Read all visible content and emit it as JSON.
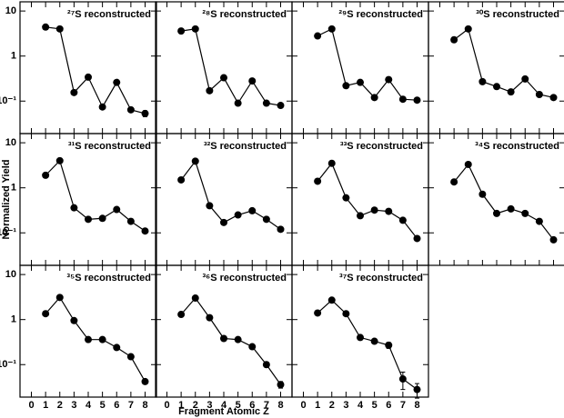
{
  "chart_data": [
    {
      "type": "line",
      "title": "²⁷S reconstructed",
      "x": [
        1,
        2,
        3,
        4,
        5,
        6,
        7,
        8
      ],
      "values": [
        4.4,
        4.0,
        0.155,
        0.34,
        0.074,
        0.26,
        0.064,
        0.053
      ],
      "errors": [
        null,
        null,
        null,
        null,
        null,
        null,
        null,
        0.008
      ],
      "color": "#000000",
      "log_y": true,
      "xlim": [
        -0.8,
        8.8
      ],
      "ylim": [
        0.019,
        16
      ],
      "yticks": [
        {
          "value": 0.1,
          "label": "10⁻¹"
        },
        1,
        10
      ]
    },
    {
      "type": "line",
      "title": "²⁸S reconstructed",
      "x": [
        1,
        2,
        3,
        4,
        5,
        6,
        7,
        8
      ],
      "values": [
        3.6,
        4.0,
        0.17,
        0.33,
        0.09,
        0.28,
        0.09,
        0.08
      ],
      "color": "#000000",
      "log_y": true,
      "xlim": [
        -0.8,
        8.8
      ],
      "ylim": [
        0.019,
        16
      ]
    },
    {
      "type": "line",
      "title": "²⁹S reconstructed",
      "x": [
        1,
        2,
        3,
        4,
        5,
        6,
        7,
        8
      ],
      "values": [
        2.8,
        4.0,
        0.22,
        0.26,
        0.12,
        0.3,
        0.11,
        0.105
      ],
      "color": "#000000",
      "log_y": true,
      "xlim": [
        -0.8,
        8.8
      ],
      "ylim": [
        0.019,
        16
      ]
    },
    {
      "type": "line",
      "title": "³⁰S reconstructed",
      "x": [
        1,
        2,
        3,
        4,
        5,
        6,
        7,
        8
      ],
      "values": [
        2.3,
        4.0,
        0.27,
        0.21,
        0.16,
        0.31,
        0.14,
        0.12
      ],
      "color": "#000000",
      "log_y": true,
      "xlim": [
        -0.8,
        8.8
      ],
      "ylim": [
        0.019,
        16
      ]
    },
    {
      "type": "line",
      "title": "³¹S reconstructed",
      "x": [
        1,
        2,
        3,
        4,
        5,
        6,
        7,
        8
      ],
      "values": [
        1.9,
        4.0,
        0.36,
        0.2,
        0.21,
        0.33,
        0.18,
        0.11
      ],
      "color": "#000000",
      "log_y": true,
      "xlim": [
        -0.8,
        8.8
      ],
      "ylim": [
        0.019,
        16
      ],
      "yticks": [
        {
          "value": 0.1,
          "label": "10⁻¹"
        },
        1,
        10
      ],
      "ylabel": "Normalized Yield"
    },
    {
      "type": "line",
      "title": "³²S reconstructed",
      "x": [
        1,
        2,
        3,
        4,
        5,
        6,
        7,
        8
      ],
      "values": [
        1.5,
        3.9,
        0.4,
        0.17,
        0.25,
        0.31,
        0.2,
        0.12
      ],
      "color": "#000000",
      "log_y": true,
      "xlim": [
        -0.8,
        8.8
      ],
      "ylim": [
        0.019,
        16
      ]
    },
    {
      "type": "line",
      "title": "³³S reconstructed",
      "x": [
        1,
        2,
        3,
        4,
        5,
        6,
        7,
        8
      ],
      "values": [
        1.4,
        3.5,
        0.6,
        0.24,
        0.32,
        0.3,
        0.19,
        0.075
      ],
      "color": "#000000",
      "log_y": true,
      "xlim": [
        -0.8,
        8.8
      ],
      "ylim": [
        0.019,
        16
      ]
    },
    {
      "type": "line",
      "title": "³⁴S reconstructed",
      "x": [
        1,
        2,
        3,
        4,
        5,
        6,
        7,
        8
      ],
      "values": [
        1.35,
        3.3,
        0.72,
        0.27,
        0.34,
        0.27,
        0.18,
        0.07
      ],
      "color": "#000000",
      "log_y": true,
      "xlim": [
        -0.8,
        8.8
      ],
      "ylim": [
        0.019,
        16
      ]
    },
    {
      "type": "line",
      "title": "³⁵S reconstructed",
      "x": [
        1,
        2,
        3,
        4,
        5,
        6,
        7,
        8
      ],
      "values": [
        1.35,
        3.1,
        0.95,
        0.36,
        0.36,
        0.24,
        0.15,
        0.042
      ],
      "color": "#000000",
      "log_y": true,
      "xlim": [
        -0.8,
        8.8
      ],
      "ylim": [
        0.019,
        16
      ],
      "yticks": [
        {
          "value": 0.1,
          "label": "10⁻¹"
        },
        1,
        10
      ],
      "xticks": [
        0,
        1,
        2,
        3,
        4,
        5,
        6,
        7,
        8
      ]
    },
    {
      "type": "line",
      "title": "³⁶S reconstructed",
      "x": [
        1,
        2,
        3,
        4,
        5,
        6,
        7,
        8
      ],
      "values": [
        1.3,
        3.0,
        1.1,
        0.38,
        0.36,
        0.25,
        0.1,
        0.036
      ],
      "errors": [
        null,
        null,
        null,
        null,
        null,
        null,
        null,
        0.006
      ],
      "color": "#000000",
      "log_y": true,
      "xlim": [
        -0.8,
        8.8
      ],
      "ylim": [
        0.019,
        16
      ],
      "xticks": [
        0,
        1,
        2,
        3,
        4,
        5,
        6,
        7,
        8
      ],
      "xlabel": "Fragment Atomic Z"
    },
    {
      "type": "line",
      "title": "³⁷S reconstructed",
      "x": [
        1,
        2,
        3,
        4,
        5,
        6,
        7,
        8
      ],
      "values": [
        1.4,
        2.7,
        1.35,
        0.4,
        0.33,
        0.27,
        0.048,
        0.028
      ],
      "errors": [
        null,
        null,
        null,
        null,
        null,
        0.04,
        0.02,
        0.01
      ],
      "color": "#000000",
      "log_y": true,
      "xlim": [
        -0.8,
        8.8
      ],
      "ylim": [
        0.019,
        16
      ],
      "xticks": [
        0,
        1,
        2,
        3,
        4,
        5,
        6,
        7,
        8
      ]
    }
  ]
}
